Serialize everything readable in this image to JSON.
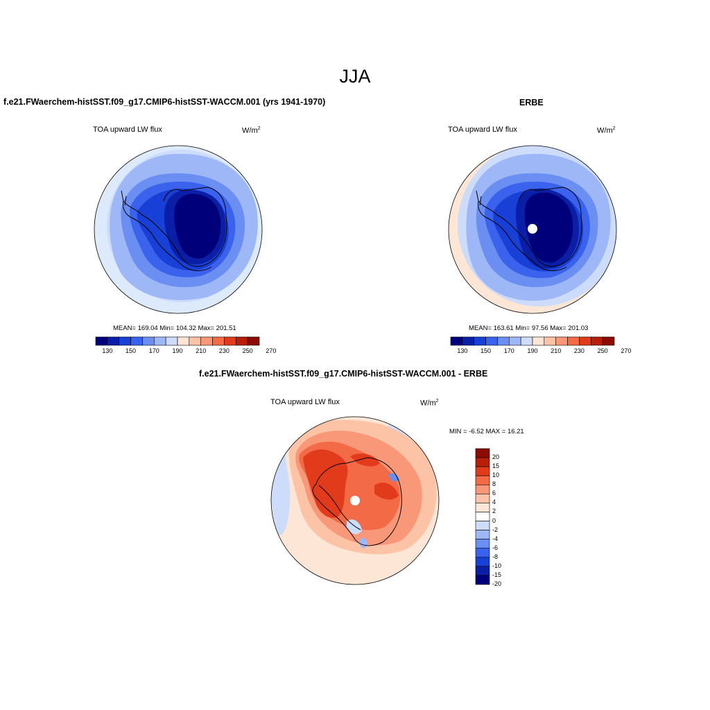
{
  "main_title": "JJA",
  "panels": {
    "model": {
      "title": "f.e21.FWaerchem-histSST.f09_g17.CMIP6-histSST-WACCM.001 (yrs 1941-1970)",
      "variable": "TOA upward LW flux",
      "units": "W/m",
      "units_sup": "2",
      "stats": "MEAN= 169.04  Min= 104.32  Max= 201.51"
    },
    "obs": {
      "title": "ERBE",
      "variable": "TOA upward LW flux",
      "units": "W/m",
      "units_sup": "2",
      "stats": "MEAN= 163.61  Min=  97.56  Max= 201.03"
    },
    "diff": {
      "title": "f.e21.FWaerchem-histSST.f09_g17.CMIP6-histSST-WACCM.001 - ERBE",
      "variable": "TOA upward LW flux",
      "units": "W/m",
      "units_sup": "2",
      "stats": "MIN =  -6.52 MAX =  16.21"
    }
  },
  "abs_colorbar": {
    "ticks": [
      "130",
      "150",
      "170",
      "190",
      "210",
      "230",
      "250",
      "270"
    ],
    "colors": [
      "#00007a",
      "#0a1ea6",
      "#1840d6",
      "#3a62ec",
      "#6a8ef2",
      "#9db7f7",
      "#cddcfa",
      "#fde6d6",
      "#fcc3a6",
      "#f99878",
      "#f26a46",
      "#e23b1c",
      "#b81e0a",
      "#8c0c04"
    ]
  },
  "diff_colorbar": {
    "labels": [
      "20",
      "15",
      "10",
      "8",
      "6",
      "4",
      "2",
      "0",
      "-2",
      "-4",
      "-6",
      "-8",
      "-10",
      "-15",
      "-20"
    ],
    "colors": [
      "#8c0c04",
      "#b81e0a",
      "#e23b1c",
      "#f26a46",
      "#f99878",
      "#fcc3a6",
      "#fde6d6",
      "#ffffff",
      "#cddcfa",
      "#9db7f7",
      "#6a8ef2",
      "#3a62ec",
      "#1840d6",
      "#0a1ea6",
      "#00007a"
    ]
  }
}
